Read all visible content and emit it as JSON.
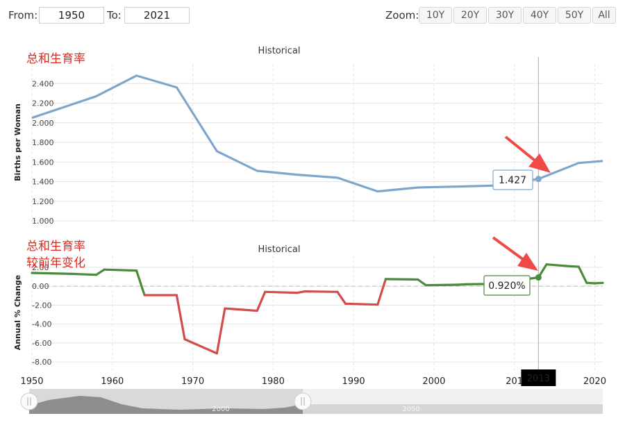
{
  "toolbar": {
    "from_label": "From:",
    "from_value": "1950",
    "to_label": "To:",
    "to_value": "2021",
    "zoom_label": "Zoom:",
    "zoom_options": [
      "10Y",
      "20Y",
      "30Y",
      "40Y",
      "50Y",
      "All"
    ]
  },
  "annotations": {
    "top_chart": "总和生育率",
    "bottom_chart_line1": "总和生育率",
    "bottom_chart_line2": "较前年变化"
  },
  "colors": {
    "fertility_line": "#7ea6cb",
    "positive_change": "#4a8a3a",
    "negative_change": "#d24c4a",
    "arrow": "#f04a46",
    "crosshair": "#b8b8b8",
    "grid": "#e4e4e4"
  },
  "chart_data": [
    {
      "type": "line",
      "title": "Historical",
      "ylabel": "Births per Woman",
      "ylim": [
        1.0,
        2.6
      ],
      "yticks": [
        "1.000",
        "1.200",
        "1.400",
        "1.600",
        "1.800",
        "2.000",
        "2.200",
        "2.400"
      ],
      "x": [
        1950,
        1958,
        1963,
        1968,
        1973,
        1978,
        1983,
        1988,
        1993,
        1998,
        2003,
        2008,
        2013,
        2018,
        2021
      ],
      "values": [
        2.05,
        2.27,
        2.48,
        2.36,
        1.71,
        1.51,
        1.47,
        1.44,
        1.3,
        1.34,
        1.35,
        1.36,
        1.427,
        1.59,
        1.61
      ],
      "tooltip": {
        "x": 2013,
        "value": "1.427"
      }
    },
    {
      "type": "line",
      "title": "Historical",
      "ylabel": "Annual % Change",
      "ylim": [
        -8.5,
        2.5
      ],
      "yticks": [
        "-8.00",
        "-6.00",
        "-4.00",
        "-2.00",
        "0.00",
        "2.00"
      ],
      "x": [
        1950,
        1955,
        1958,
        1959,
        1963,
        1964,
        1968,
        1969,
        1973,
        1974,
        1978,
        1979,
        1983,
        1984,
        1988,
        1989,
        1993,
        1994,
        1998,
        1999,
        2003,
        2004,
        2008,
        2009,
        2013,
        2014,
        2017,
        2018,
        2019,
        2020,
        2021
      ],
      "values": [
        1.4,
        1.3,
        1.2,
        1.75,
        1.65,
        -0.95,
        -0.95,
        -5.6,
        -7.1,
        -2.35,
        -2.6,
        -0.6,
        -0.7,
        -0.55,
        -0.6,
        -1.85,
        -1.95,
        0.75,
        0.7,
        0.1,
        0.15,
        0.2,
        0.25,
        0.45,
        0.92,
        2.3,
        2.1,
        2.05,
        0.35,
        0.3,
        0.35
      ],
      "tooltip": {
        "x": 2013,
        "value": "0.920%"
      }
    }
  ],
  "xaxis": {
    "ticks": [
      "1950",
      "1960",
      "1970",
      "1980",
      "1990",
      "2000",
      "201",
      "2020"
    ],
    "highlight": "2013"
  },
  "navigator": {
    "labels": [
      "2000",
      "2050"
    ]
  }
}
